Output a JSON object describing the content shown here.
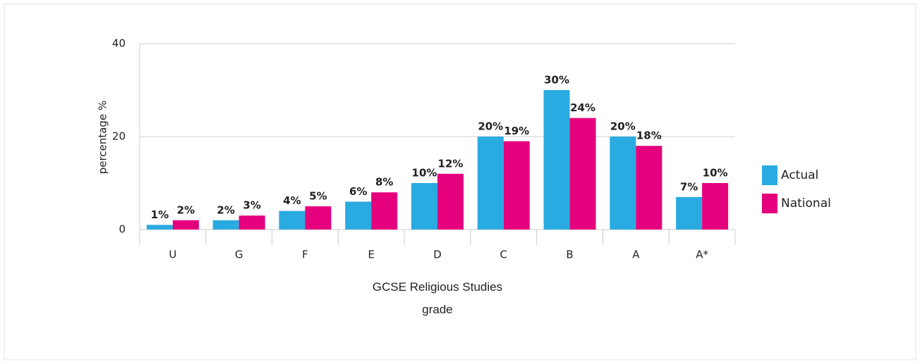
{
  "chart_data": {
    "type": "bar",
    "ylabel": "percentage %",
    "xlabel": "GCSE Religious Studies grade",
    "categories": [
      "U",
      "G",
      "F",
      "E",
      "D",
      "C",
      "B",
      "A",
      "A*"
    ],
    "series": [
      {
        "name": "Actual",
        "color": "#29abe2",
        "values": [
          1,
          2,
          4,
          6,
          10,
          20,
          30,
          20,
          7
        ],
        "value_labels": [
          "1%",
          "2%",
          "4%",
          "6%",
          "10%",
          "20%",
          "30%",
          "20%",
          "7%"
        ]
      },
      {
        "name": "National",
        "color": "#e5007e",
        "values": [
          2,
          3,
          5,
          8,
          12,
          19,
          24,
          18,
          10
        ],
        "value_labels": [
          "2%",
          "3%",
          "5%",
          "8%",
          "12%",
          "19%",
          "24%",
          "18%",
          "10%"
        ]
      }
    ],
    "ylim": [
      0,
      40
    ],
    "yticks": [
      0,
      20,
      40
    ],
    "grid": true,
    "legend": "right"
  }
}
